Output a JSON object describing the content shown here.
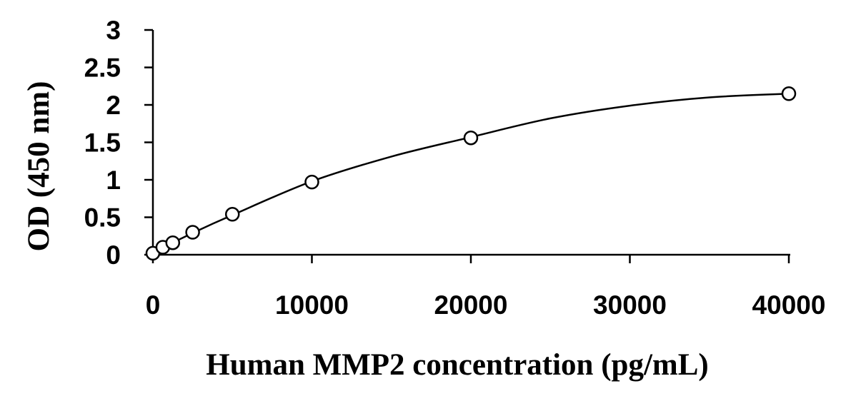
{
  "chart_data": {
    "type": "scatter",
    "title": "",
    "xlabel": "Human MMP2 concentration (pg/mL)",
    "ylabel": "OD (450 nm)",
    "xlim": [
      0,
      40000
    ],
    "ylim": [
      0,
      3
    ],
    "x_ticks": [
      "0",
      "10000",
      "20000",
      "30000",
      "40000"
    ],
    "y_ticks": [
      "0",
      "0.5",
      "1",
      "1.5",
      "2",
      "2.5",
      "3"
    ],
    "x_tick_values": [
      0,
      10000,
      20000,
      30000,
      40000
    ],
    "y_tick_values": [
      0,
      0.5,
      1,
      1.5,
      2,
      2.5,
      3
    ],
    "grid": false,
    "legend": "none",
    "series": [
      {
        "marker": "open-circle",
        "x": [
          0,
          625,
          1250,
          2500,
          5000,
          10000,
          20000,
          40000
        ],
        "y": [
          0.02,
          0.1,
          0.16,
          0.3,
          0.54,
          0.97,
          1.56,
          2.15
        ]
      }
    ],
    "fit_curve": {
      "type": "smooth",
      "x": [
        0,
        2500,
        5000,
        10000,
        15000,
        20000,
        25000,
        30000,
        35000,
        40000
      ],
      "y": [
        0.03,
        0.29,
        0.53,
        0.98,
        1.31,
        1.57,
        1.82,
        1.99,
        2.1,
        2.15
      ]
    },
    "colors": {
      "line": "#000000",
      "marker_fill": "#ffffff"
    }
  }
}
